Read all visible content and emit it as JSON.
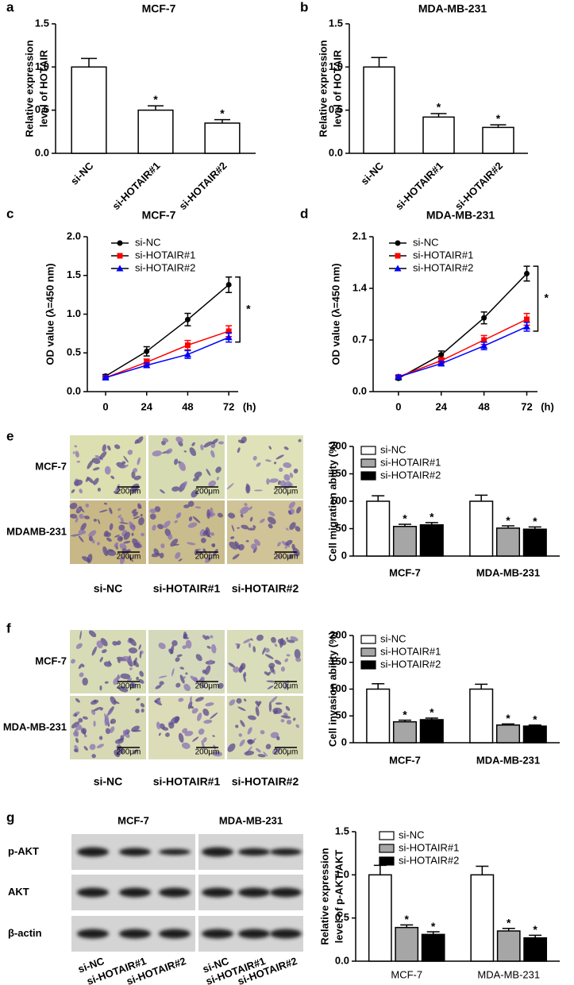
{
  "chart_data": [
    {
      "type": "bar",
      "panel": "a",
      "title": "MCF-7",
      "ylabel": [
        "Relative expression",
        "level of HOTAIR"
      ],
      "categories": [
        "si-NC",
        "si-HOTAIR#1",
        "si-HOTAIR#2"
      ],
      "values": [
        1.0,
        0.5,
        0.35
      ],
      "errors": [
        0.1,
        0.05,
        0.04
      ],
      "significance": [
        null,
        "*",
        "*"
      ],
      "color": "#ffffff",
      "ylim": [
        0,
        1.5
      ],
      "yticks": [
        {
          "value": 0,
          "label": "0.0"
        },
        0.5,
        {
          "value": 1,
          "label": "1.0"
        },
        1.5
      ]
    },
    {
      "type": "bar",
      "panel": "b",
      "title": "MDA-MB-231",
      "ylabel": [
        "Relative expression",
        "level of HOTAIR"
      ],
      "categories": [
        "si-NC",
        "si-HOTAIR#1",
        "si-HOTAIR#2"
      ],
      "values": [
        1.0,
        0.42,
        0.3
      ],
      "errors": [
        0.11,
        0.04,
        0.03
      ],
      "significance": [
        null,
        "*",
        "*"
      ],
      "color": "#ffffff",
      "ylim": [
        0,
        1.5
      ],
      "yticks": [
        {
          "value": 0,
          "label": "0.0"
        },
        0.5,
        {
          "value": 1,
          "label": "1.0"
        },
        1.5
      ]
    },
    {
      "type": "line",
      "panel": "c",
      "title": "MCF-7",
      "ylabel": [
        "OD value (λ=450 nm)"
      ],
      "xlabel": "(h)",
      "annotation": "*",
      "x": [
        0,
        24,
        48,
        72
      ],
      "xlim": [
        -10.7,
        77.5
      ],
      "xticks": [
        0,
        24,
        48,
        72
      ],
      "ylim": [
        0,
        2.0
      ],
      "yticks": [
        {
          "value": 0,
          "label": "0.0"
        },
        0.5,
        {
          "value": 1,
          "label": "1.0"
        },
        1.5,
        {
          "value": 2,
          "label": "2.0"
        }
      ],
      "series": [
        {
          "name": "si-NC",
          "color": "#000000",
          "marker": "circle",
          "values": [
            0.2,
            0.52,
            0.93,
            1.38
          ],
          "errors": [
            0.02,
            0.06,
            0.08,
            0.1
          ]
        },
        {
          "name": "si-HOTAIR#1",
          "color": "#ff0000",
          "marker": "square",
          "values": [
            0.18,
            0.38,
            0.6,
            0.78
          ],
          "errors": [
            0.02,
            0.04,
            0.06,
            0.07
          ]
        },
        {
          "name": "si-HOTAIR#2",
          "color": "#0000ff",
          "marker": "triangle",
          "values": [
            0.18,
            0.34,
            0.48,
            0.7
          ],
          "errors": [
            0.02,
            0.03,
            0.05,
            0.06
          ]
        }
      ]
    },
    {
      "type": "line",
      "panel": "d",
      "title": "MDA-MB-231",
      "ylabel": [
        "OD value (λ=450 nm)"
      ],
      "xlabel": "(h)",
      "annotation": "*",
      "x": [
        0,
        24,
        48,
        72
      ],
      "xlim": [
        -14.2,
        78
      ],
      "xticks": [
        0,
        24,
        48,
        72
      ],
      "ylim": [
        0,
        2.1
      ],
      "yticks": [
        {
          "value": 0,
          "label": "0.0"
        },
        0.7,
        1.4,
        2.1
      ],
      "series": [
        {
          "name": "si-NC",
          "color": "#000000",
          "marker": "circle",
          "values": [
            0.18,
            0.5,
            1.0,
            1.6
          ],
          "errors": [
            0.02,
            0.05,
            0.08,
            0.1
          ]
        },
        {
          "name": "si-HOTAIR#1",
          "color": "#ff0000",
          "marker": "square",
          "values": [
            0.2,
            0.42,
            0.7,
            0.98
          ],
          "errors": [
            0.02,
            0.04,
            0.06,
            0.08
          ]
        },
        {
          "name": "si-HOTAIR#2",
          "color": "#0000ff",
          "marker": "triangle",
          "values": [
            0.2,
            0.38,
            0.62,
            0.88
          ],
          "errors": [
            0.02,
            0.03,
            0.05,
            0.06
          ]
        }
      ]
    },
    {
      "type": "grouped_bar",
      "ylabel": [
        "Cell migration ability (%)"
      ],
      "categories": [
        "MCF-7",
        "MDA-MB-231"
      ],
      "ylim": [
        0,
        200
      ],
      "yticks": [
        0,
        50,
        100,
        150,
        200
      ],
      "series": [
        {
          "name": "si-NC",
          "color": "#ffffff",
          "values": [
            100,
            100
          ],
          "errors": [
            10,
            11
          ],
          "significance": [
            null,
            null
          ]
        },
        {
          "name": "si-HOTAIR#1",
          "color": "#a6a6a6",
          "values": [
            54,
            51
          ],
          "errors": [
            4,
            4
          ],
          "significance": [
            "*",
            "*"
          ]
        },
        {
          "name": "si-HOTAIR#2",
          "color": "#000000",
          "values": [
            57,
            49
          ],
          "errors": [
            4,
            4
          ],
          "significance": [
            "*",
            "*"
          ]
        }
      ]
    },
    {
      "type": "grouped_bar",
      "ylabel": [
        "Cell invasion ability (%)"
      ],
      "categories": [
        "MCF-7",
        "MDA-MB-231"
      ],
      "ylim": [
        0,
        200
      ],
      "yticks": [
        0,
        50,
        100,
        150,
        200
      ],
      "series": [
        {
          "name": "si-NC",
          "color": "#ffffff",
          "values": [
            100,
            100
          ],
          "errors": [
            10,
            9
          ],
          "significance": [
            null,
            null
          ]
        },
        {
          "name": "si-HOTAIR#1",
          "color": "#a6a6a6",
          "values": [
            39,
            33
          ],
          "errors": [
            3,
            2
          ],
          "significance": [
            "*",
            "*"
          ]
        },
        {
          "name": "si-HOTAIR#2",
          "color": "#000000",
          "values": [
            43,
            31
          ],
          "errors": [
            3,
            2
          ],
          "significance": [
            "*",
            "*"
          ]
        }
      ]
    },
    {
      "type": "grouped_bar",
      "ylabel": [
        "Relative expression",
        "level of p-AKT/AKT"
      ],
      "categories": [
        "MCF-7",
        "MDA-MB-231"
      ],
      "ylim": [
        0,
        1.5
      ],
      "yticks": [
        {
          "value": 0,
          "label": "0.0"
        },
        0.5,
        {
          "value": 1,
          "label": "1.0"
        },
        1.5
      ],
      "series": [
        {
          "name": "si-NC",
          "color": "#ffffff",
          "values": [
            1.0,
            1.0
          ],
          "errors": [
            0.11,
            0.1
          ],
          "significance": [
            null,
            null
          ]
        },
        {
          "name": "si-HOTAIR#1",
          "color": "#a6a6a6",
          "values": [
            0.39,
            0.35
          ],
          "errors": [
            0.03,
            0.03
          ],
          "significance": [
            "*",
            "*"
          ]
        },
        {
          "name": "si-HOTAIR#2",
          "color": "#000000",
          "values": [
            0.31,
            0.27
          ],
          "errors": [
            0.03,
            0.03
          ],
          "significance": [
            "*",
            "*"
          ]
        }
      ]
    }
  ],
  "images": [
    {
      "panel": "e",
      "row_labels": [
        "MCF-7",
        "MDAMB-231"
      ],
      "col_labels": [
        "si-NC",
        "si-HOTAIR#1",
        "si-HOTAIR#2"
      ],
      "scale_labels": [
        "200μm",
        "200μm",
        "200μm",
        "200μm",
        "200μm",
        "200μm"
      ]
    },
    {
      "panel": "f",
      "row_labels": [
        "MCF-7",
        "MDA-MB-231"
      ],
      "col_labels": [
        "si-NC",
        "si-HOTAIR#1",
        "si-HOTAIR#2"
      ],
      "scale_labels": [
        "200μm",
        "200μm",
        "200μm",
        "200μm",
        "200μm",
        "200μm"
      ]
    }
  ],
  "blot": {
    "panel": "g",
    "row_labels": [
      "p-AKT",
      "AKT",
      "β-actin"
    ],
    "group_labels": [
      "MCF-7",
      "MDA-MB-231"
    ],
    "lane_labels": [
      "si-NC",
      "si-HOTAIR#1",
      "si-HOTAIR#2",
      "si-NC",
      "si-HOTAIR#1",
      "si-HOTAIR#2"
    ]
  }
}
